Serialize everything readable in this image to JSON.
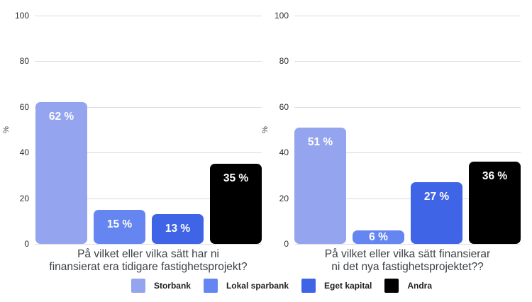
{
  "figure": {
    "background": "#ffffff"
  },
  "axis": {
    "unit_label": "%",
    "ticks": [
      0,
      20,
      40,
      60,
      80,
      100
    ],
    "max": 100
  },
  "legend": {
    "position": "bottom",
    "items": [
      {
        "label": "Storbank",
        "color": "#94a4ee"
      },
      {
        "label": "Lokal sparbank",
        "color": "#6586f1"
      },
      {
        "label": "Eget kapital",
        "color": "#4064e6"
      },
      {
        "label": "Andra",
        "color": "#000000"
      }
    ]
  },
  "chart_data": [
    {
      "type": "bar",
      "title": "På vilket eller vilka sätt har ni finansierat era tidigare fastighetsprojekt?",
      "title_lines": {
        "line1": "På vilket eller vilka sätt har ni",
        "line2": "finansierat era tidigare fastighetsprojekt?"
      },
      "xlabel": "",
      "ylabel": "%",
      "ylim": [
        0,
        100
      ],
      "yticks": [
        0,
        20,
        40,
        60,
        80,
        100
      ],
      "grid": true,
      "legend_position": "bottom",
      "categories": [
        "Storbank",
        "Lokal sparbank",
        "Eget kapital",
        "Andra"
      ],
      "values": [
        62,
        15,
        13,
        35
      ],
      "value_labels": [
        "62 %",
        "15 %",
        "13 %",
        "35 %"
      ],
      "colors": [
        "#94a4ee",
        "#6586f1",
        "#4064e6",
        "#000000"
      ]
    },
    {
      "type": "bar",
      "title": "På vilket eller vilka sätt finansierar ni det nya fastighetsprojektet??",
      "title_lines": {
        "line1": "På vilket eller vilka sätt finansierar",
        "line2": "ni det nya fastighetsprojektet??"
      },
      "xlabel": "",
      "ylabel": "%",
      "ylim": [
        0,
        100
      ],
      "yticks": [
        0,
        20,
        40,
        60,
        80,
        100
      ],
      "grid": true,
      "legend_position": "bottom",
      "categories": [
        "Storbank",
        "Lokal sparbank",
        "Eget kapital",
        "Andra"
      ],
      "values": [
        51,
        6,
        27,
        36
      ],
      "value_labels": [
        "51 %",
        "6 %",
        "27 %",
        "36 %"
      ],
      "colors": [
        "#94a4ee",
        "#6586f1",
        "#4064e6",
        "#000000"
      ]
    }
  ],
  "colors": {
    "gridline": "#dcdcdc",
    "tick_text": "#2e2e2e",
    "title_text": "#3c4045",
    "bar_label_text": "#ffffff"
  }
}
